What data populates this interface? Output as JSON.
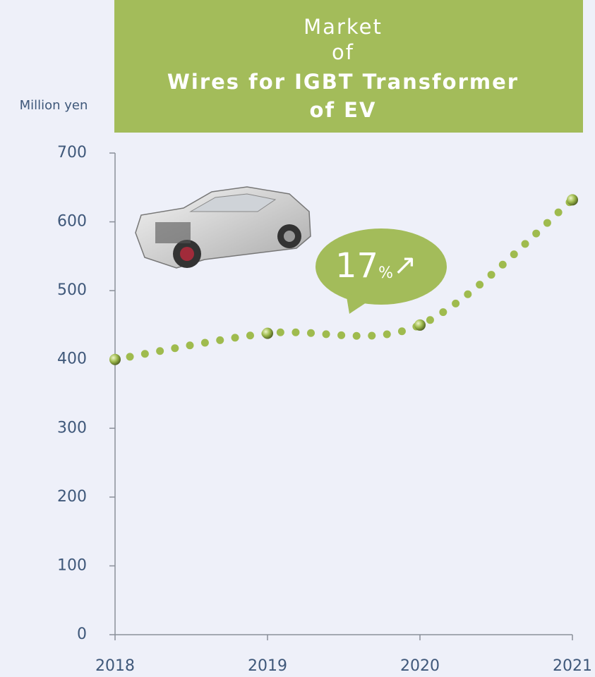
{
  "chart_data": {
    "type": "line",
    "title": [
      "Market",
      "of",
      "Wires for IGBT Transformer",
      "of EV"
    ],
    "y_label": "Million yen",
    "annotation": [
      "17",
      "%",
      "↗"
    ],
    "categories": [
      "2018",
      "2019",
      "2020",
      "2021"
    ],
    "series": [
      {
        "color": "#9fbb4e",
        "values": [
          400,
          438,
          450,
          632
        ]
      }
    ],
    "ylim": [
      0,
      700
    ],
    "yticks": [
      0,
      100,
      200,
      300,
      400,
      500,
      600,
      700
    ]
  }
}
